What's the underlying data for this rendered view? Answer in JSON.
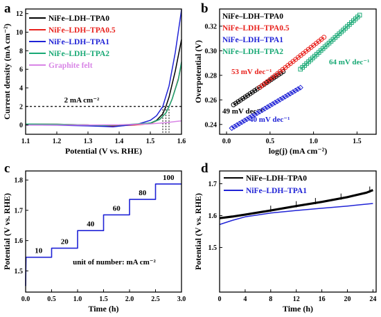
{
  "colors": {
    "black": "#000000",
    "red": "#e8211c",
    "blue": "#1f22d6",
    "green": "#17a874",
    "violet": "#d884e6"
  },
  "chart_data": [
    {
      "panel": "a",
      "type": "line",
      "xlabel": "Potential (V vs. RHE)",
      "ylabel": "Current density (mA cm⁻²)",
      "xlim": [
        1.1,
        1.6
      ],
      "ylim": [
        -1,
        12.5
      ],
      "xticks": [
        1.1,
        1.2,
        1.3,
        1.4,
        1.5,
        1.6
      ],
      "yticks": [
        0,
        2,
        4,
        6,
        8,
        10,
        12
      ],
      "xtick_labels": [
        "1.1",
        "1.2",
        "1.3",
        "1.4",
        "1.5",
        "1.6"
      ],
      "ytick_labels": [
        "0",
        "2",
        "4",
        "6",
        "8",
        "10",
        "12"
      ],
      "legend_position": "top-left",
      "annotations": [
        {
          "text": "2 mA cm⁻²",
          "type": "horizontal-dashed",
          "y": 2
        }
      ],
      "markers": [
        1.54,
        1.55,
        1.56
      ],
      "series": [
        {
          "name": "NiFe–LDH–TPA0",
          "color": "#000000",
          "points": [
            [
              1.1,
              0.05
            ],
            [
              1.2,
              0.04
            ],
            [
              1.3,
              0.0
            ],
            [
              1.35,
              -0.1
            ],
            [
              1.4,
              -0.05
            ],
            [
              1.45,
              0.05
            ],
            [
              1.5,
              0.2
            ],
            [
              1.52,
              0.5
            ],
            [
              1.54,
              1.2
            ],
            [
              1.55,
              2.0
            ],
            [
              1.56,
              3.0
            ],
            [
              1.58,
              5.8
            ],
            [
              1.6,
              9.2
            ]
          ]
        },
        {
          "name": "NiFe–LDH–TPA0.5",
          "color": "#e8211c",
          "points": [
            [
              1.1,
              0.1
            ],
            [
              1.2,
              0.08
            ],
            [
              1.3,
              0.0
            ],
            [
              1.35,
              -0.12
            ],
            [
              1.4,
              -0.08
            ],
            [
              1.45,
              0.0
            ],
            [
              1.5,
              0.15
            ],
            [
              1.53,
              0.6
            ],
            [
              1.55,
              1.3
            ],
            [
              1.56,
              2.0
            ],
            [
              1.57,
              2.8
            ],
            [
              1.59,
              5.0
            ],
            [
              1.6,
              6.6
            ]
          ]
        },
        {
          "name": "NiFe–LDH–TPA1",
          "color": "#1f22d6",
          "points": [
            [
              1.1,
              0.0
            ],
            [
              1.2,
              -0.02
            ],
            [
              1.3,
              -0.1
            ],
            [
              1.35,
              -0.15
            ],
            [
              1.38,
              -0.2
            ],
            [
              1.42,
              -0.05
            ],
            [
              1.46,
              0.1
            ],
            [
              1.5,
              0.5
            ],
            [
              1.52,
              1.0
            ],
            [
              1.54,
              2.0
            ],
            [
              1.56,
              4.2
            ],
            [
              1.58,
              7.8
            ],
            [
              1.6,
              12.4
            ]
          ]
        },
        {
          "name": "NiFe–LDH–TPA2",
          "color": "#17a874",
          "points": [
            [
              1.1,
              0.1
            ],
            [
              1.2,
              0.08
            ],
            [
              1.3,
              0.0
            ],
            [
              1.35,
              -0.05
            ],
            [
              1.4,
              0.0
            ],
            [
              1.45,
              0.1
            ],
            [
              1.5,
              0.2
            ],
            [
              1.53,
              0.6
            ],
            [
              1.55,
              1.3
            ],
            [
              1.56,
              2.0
            ],
            [
              1.57,
              2.8
            ],
            [
              1.59,
              4.9
            ],
            [
              1.6,
              6.8
            ]
          ]
        },
        {
          "name": "Graphite felt",
          "color": "#d884e6",
          "points": [
            [
              1.1,
              0.0
            ],
            [
              1.2,
              0.0
            ],
            [
              1.3,
              0.0
            ],
            [
              1.4,
              0.02
            ],
            [
              1.5,
              0.12
            ],
            [
              1.55,
              0.25
            ],
            [
              1.6,
              0.45
            ]
          ]
        }
      ]
    },
    {
      "panel": "b",
      "type": "scatter",
      "xlabel": "log(j) (mA cm⁻²)",
      "ylabel": "Overpotential (V)",
      "xlim": [
        -0.08,
        1.72
      ],
      "ylim": [
        0.232,
        0.334
      ],
      "xticks": [
        0.0,
        0.5,
        1.0,
        1.5
      ],
      "yticks": [
        0.24,
        0.26,
        0.28,
        0.3,
        0.32
      ],
      "xtick_labels": [
        "0.0",
        "0.5",
        "1.0",
        "1.5"
      ],
      "ytick_labels": [
        "0.24",
        "0.26",
        "0.28",
        "0.30",
        "0.32"
      ],
      "legend_position": "top-left",
      "series": [
        {
          "name": "NiFe–LDH–TPA0",
          "color": "#000000",
          "marker": "circle",
          "x_range": [
            0.08,
            0.65
          ],
          "y_range": [
            0.256,
            0.283
          ],
          "count": 22
        },
        {
          "name": "NiFe–LDH–TPA0.5",
          "color": "#e8211c",
          "marker": "circle",
          "x_range": [
            0.38,
            1.12
          ],
          "y_range": [
            0.27,
            0.311
          ],
          "count": 26
        },
        {
          "name": "NiFe–LDH–TPA1",
          "color": "#1f22d6",
          "marker": "diamond",
          "x_range": [
            0.06,
            0.85
          ],
          "y_range": [
            0.237,
            0.27
          ],
          "count": 28
        },
        {
          "name": "NiFe–LDH–TPA2",
          "color": "#17a874",
          "marker": "square",
          "x_range": [
            0.85,
            1.53
          ],
          "y_range": [
            0.285,
            0.329
          ],
          "count": 30
        }
      ],
      "slope_labels": [
        {
          "text": "53 mV dec⁻¹",
          "color": "#e8211c"
        },
        {
          "text": "64 mV dec⁻¹",
          "color": "#17a874"
        },
        {
          "text": "49 mV dec⁻¹",
          "color": "#000000"
        },
        {
          "text": "40 mV dec⁻¹",
          "color": "#1f22d6"
        }
      ]
    },
    {
      "panel": "c",
      "type": "line",
      "xlabel": "Time (h)",
      "ylabel": "Potential (V vs. RHE)",
      "xlim": [
        0,
        3.0
      ],
      "ylim": [
        1.43,
        1.83
      ],
      "xticks": [
        0,
        0.5,
        1.0,
        1.5,
        2.0,
        2.5,
        3.0
      ],
      "yticks": [
        1.5,
        1.6,
        1.7,
        1.8
      ],
      "xtick_labels": [
        "0.0",
        "0.5",
        "1.0",
        "1.5",
        "2.0",
        "2.5",
        "3.0"
      ],
      "ytick_labels": [
        "1.5",
        "1.6",
        "1.7",
        "1.8"
      ],
      "note": "unit of number: mA cm⁻²",
      "steps": [
        {
          "label": "10",
          "x_start": 0.0,
          "x_end": 0.5,
          "y": 1.545
        },
        {
          "label": "20",
          "x_start": 0.5,
          "x_end": 1.0,
          "y": 1.575
        },
        {
          "label": "40",
          "x_start": 1.0,
          "x_end": 1.5,
          "y": 1.633
        },
        {
          "label": "60",
          "x_start": 1.5,
          "x_end": 2.0,
          "y": 1.685
        },
        {
          "label": "80",
          "x_start": 2.0,
          "x_end": 2.5,
          "y": 1.736
        },
        {
          "label": "100",
          "x_start": 2.5,
          "x_end": 3.0,
          "y": 1.787
        }
      ],
      "series": [
        {
          "name": "",
          "color": "#1f22d6"
        }
      ]
    },
    {
      "panel": "d",
      "type": "line",
      "xlabel": "Time (h)",
      "ylabel": "Potential (V vs. RHE)",
      "xlim": [
        0,
        24.5
      ],
      "ylim": [
        1.36,
        1.74
      ],
      "xticks": [
        0,
        4,
        8,
        12,
        16,
        20,
        24
      ],
      "yticks": [
        1.5,
        1.6,
        1.7
      ],
      "xtick_labels": [
        "0",
        "4",
        "8",
        "12",
        "16",
        "20",
        "24"
      ],
      "ytick_labels": [
        "1.5",
        "1.6",
        "1.7"
      ],
      "legend_position": "top-left",
      "series": [
        {
          "name": "NiFe–LDH–TPA0",
          "color": "#000000",
          "points": [
            [
              0,
              1.592
            ],
            [
              2,
              1.597
            ],
            [
              4,
              1.603
            ],
            [
              8,
              1.616
            ],
            [
              12,
              1.63
            ],
            [
              16,
              1.643
            ],
            [
              20,
              1.658
            ],
            [
              23,
              1.672
            ],
            [
              24,
              1.68
            ]
          ]
        },
        {
          "name": "NiFe–LDH–TPA1",
          "color": "#1f22d6",
          "points": [
            [
              0,
              1.572
            ],
            [
              2,
              1.585
            ],
            [
              4,
              1.596
            ],
            [
              8,
              1.608
            ],
            [
              12,
              1.616
            ],
            [
              16,
              1.623
            ],
            [
              20,
              1.63
            ],
            [
              24,
              1.638
            ]
          ]
        }
      ]
    }
  ]
}
